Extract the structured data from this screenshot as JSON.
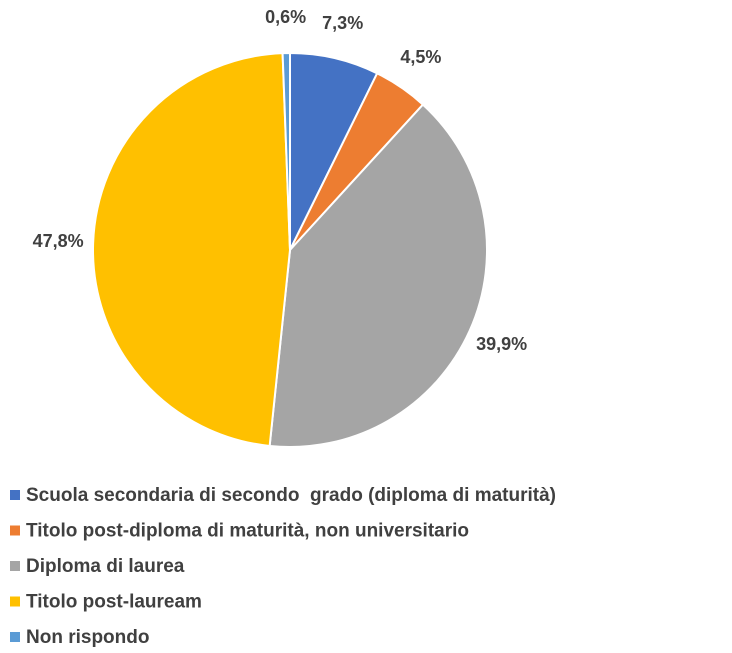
{
  "chart_data": {
    "type": "pie",
    "categories": [
      "Scuola secondaria di secondo  grado (diploma di maturità)",
      "Titolo post-diploma di maturità, non universitario",
      "Diploma di laurea",
      "Titolo post-lauream",
      "Non rispondo"
    ],
    "values": [
      7.3,
      4.5,
      39.9,
      47.8,
      0.6
    ],
    "value_labels": [
      "7,3%",
      "4,5%",
      "39,9%",
      "47,8%",
      "0,6%"
    ],
    "colors": [
      "#4472c4",
      "#ed7d31",
      "#a5a5a5",
      "#ffc000",
      "#5b9bd5"
    ],
    "legend": "bottom"
  }
}
